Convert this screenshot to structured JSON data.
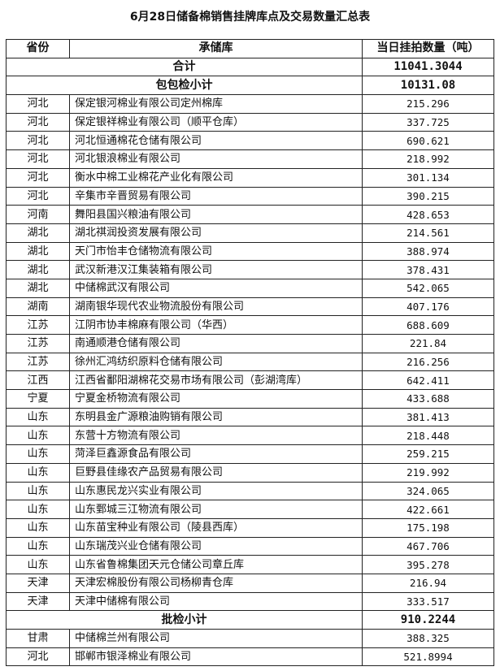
{
  "title": "6月28日储备棉销售挂牌库点及交易数量汇总表",
  "columns": [
    "省份",
    "承储库",
    "当日挂拍数量（吨）"
  ],
  "total": {
    "label": "合计",
    "qty": "11041.3044"
  },
  "groups": [
    {
      "label": "包包检小计",
      "qty": "10131.08",
      "rows": [
        {
          "province": "河北",
          "warehouse": "保定银河棉业有限公司定州棉库",
          "qty": "215.296"
        },
        {
          "province": "河北",
          "warehouse": "保定银祥棉业有限公司（顺平仓库）",
          "qty": "337.725"
        },
        {
          "province": "河北",
          "warehouse": "河北恒通棉花仓储有限公司",
          "qty": "690.621"
        },
        {
          "province": "河北",
          "warehouse": "河北银浪棉业有限公司",
          "qty": "218.992"
        },
        {
          "province": "河北",
          "warehouse": "衡水中棉工业棉花产业化有限公司",
          "qty": "301.134"
        },
        {
          "province": "河北",
          "warehouse": "辛集市辛晋贸易有限公司",
          "qty": "390.215"
        },
        {
          "province": "河南",
          "warehouse": "舞阳县国兴粮油有限公司",
          "qty": "428.653"
        },
        {
          "province": "湖北",
          "warehouse": "湖北祺润投资发展有限公司",
          "qty": "214.561"
        },
        {
          "province": "湖北",
          "warehouse": "天门市怡丰仓储物流有限公司",
          "qty": "388.974"
        },
        {
          "province": "湖北",
          "warehouse": "武汉新港汉江集装箱有限公司",
          "qty": "378.431"
        },
        {
          "province": "湖北",
          "warehouse": "中储棉武汉有限公司",
          "qty": "542.065"
        },
        {
          "province": "湖南",
          "warehouse": "湖南银华现代农业物流股份有限公司",
          "qty": "407.176"
        },
        {
          "province": "江苏",
          "warehouse": "江阴市协丰棉麻有限公司（华西）",
          "qty": "688.609"
        },
        {
          "province": "江苏",
          "warehouse": "南通顺港仓储有限公司",
          "qty": "221.84"
        },
        {
          "province": "江苏",
          "warehouse": "徐州汇鸿纺织原料仓储有限公司",
          "qty": "216.256"
        },
        {
          "province": "江西",
          "warehouse": "江西省鄱阳湖棉花交易市场有限公司（彭湖湾库）",
          "qty": "642.411"
        },
        {
          "province": "宁夏",
          "warehouse": "宁夏金桥物流有限公司",
          "qty": "433.688"
        },
        {
          "province": "山东",
          "warehouse": "东明县金广源粮油购销有限公司",
          "qty": "381.413"
        },
        {
          "province": "山东",
          "warehouse": "东营十方物流有限公司",
          "qty": "218.448"
        },
        {
          "province": "山东",
          "warehouse": "菏泽巨鑫源食品有限公司",
          "qty": "259.215"
        },
        {
          "province": "山东",
          "warehouse": "巨野县佳缘农产品贸易有限公司",
          "qty": "219.992"
        },
        {
          "province": "山东",
          "warehouse": "山东惠民龙兴实业有限公司",
          "qty": "324.065"
        },
        {
          "province": "山东",
          "warehouse": "山东鄄城三江物流有限公司",
          "qty": "422.661"
        },
        {
          "province": "山东",
          "warehouse": "山东苗宝种业有限公司（陵县西库）",
          "qty": "175.198"
        },
        {
          "province": "山东",
          "warehouse": "山东瑞茂兴业仓储有限公司",
          "qty": "467.706"
        },
        {
          "province": "山东",
          "warehouse": "山东省鲁棉集团天元仓储公司章丘库",
          "qty": "395.278"
        },
        {
          "province": "天津",
          "warehouse": "天津宏棉股份有限公司杨柳青仓库",
          "qty": "216.94"
        },
        {
          "province": "天津",
          "warehouse": "天津中储棉有限公司",
          "qty": "333.517"
        }
      ]
    },
    {
      "label": "批检小计",
      "qty": "910.2244",
      "rows": [
        {
          "province": "甘肃",
          "warehouse": "中储棉兰州有限公司",
          "qty": "388.325"
        },
        {
          "province": "河北",
          "warehouse": "邯郸市银泽棉业有限公司",
          "qty": "521.8994"
        }
      ]
    }
  ]
}
